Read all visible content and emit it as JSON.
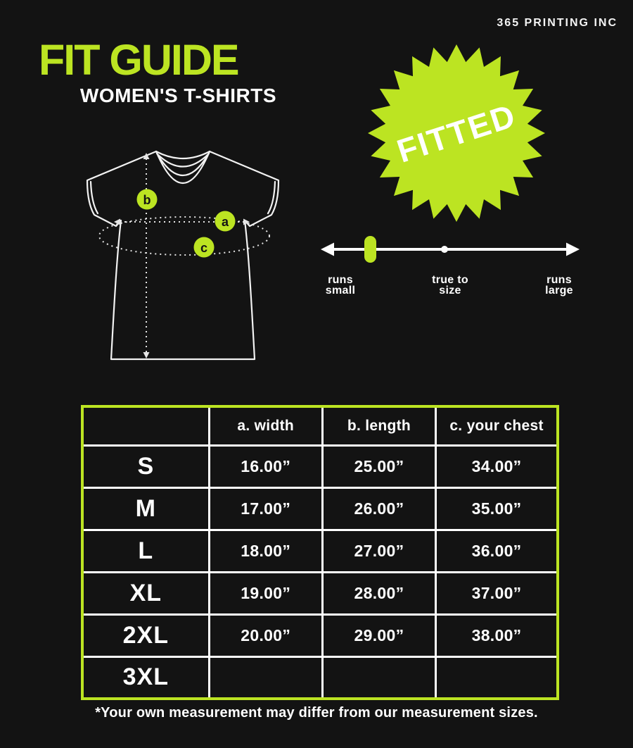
{
  "brand": "365 PRINTING INC",
  "header": {
    "title": "FIT GUIDE",
    "subtitle": "WOMEN'S T-SHIRTS"
  },
  "badge": {
    "label": "FITTED"
  },
  "diagram": {
    "marker_a": "a",
    "marker_b": "b",
    "marker_c": "c"
  },
  "fit_scale": {
    "left_line1": "runs",
    "left_line2": "small",
    "center_line1": "true to",
    "center_line2": "size",
    "right_line1": "runs",
    "right_line2": "large",
    "indicator_position": "runs small"
  },
  "size_table": {
    "columns": {
      "size": "",
      "width": "a. width",
      "length": "b. length",
      "chest": "c. your chest"
    },
    "rows": [
      {
        "size": "S",
        "width": "16.00”",
        "length": "25.00”",
        "chest": "34.00”"
      },
      {
        "size": "M",
        "width": "17.00”",
        "length": "26.00”",
        "chest": "35.00”"
      },
      {
        "size": "L",
        "width": "18.00”",
        "length": "27.00”",
        "chest": "36.00”"
      },
      {
        "size": "XL",
        "width": "19.00”",
        "length": "28.00”",
        "chest": "37.00”"
      },
      {
        "size": "2XL",
        "width": "20.00”",
        "length": "29.00”",
        "chest": "38.00”"
      },
      {
        "size": "3XL",
        "width": "",
        "length": "",
        "chest": ""
      }
    ]
  },
  "footnote": "*Your own measurement may differ from our measurement sizes.",
  "colors": {
    "accent_green": "#bce422",
    "background": "#131313",
    "text_white": "#ffffff"
  }
}
